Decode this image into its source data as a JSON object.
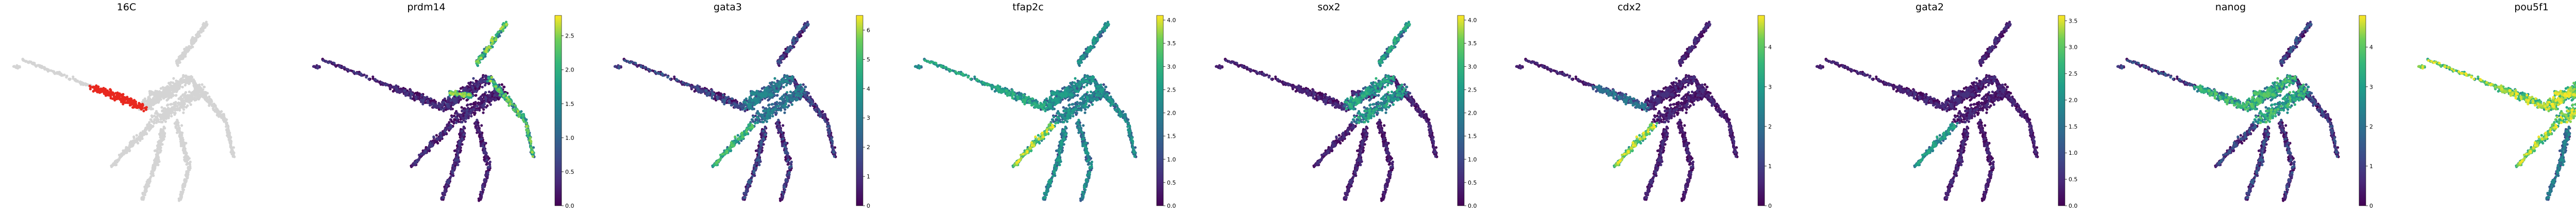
{
  "figure": {
    "kind": "embedding feature plots"
  },
  "chart_data": [
    {
      "type": "scatter",
      "title": "16C",
      "legend": "none",
      "grid": false,
      "colors": {
        "highlight": "#e8281f",
        "background": "#d4d4d4"
      }
    },
    {
      "type": "scatter",
      "title": "prdm14",
      "grid": false,
      "colormap": "viridis",
      "vmin": 0,
      "vmax": 2.8,
      "colorbar_ticks": [
        "0.0",
        "0.5",
        "1.0",
        "1.5",
        "2.0",
        "2.5"
      ],
      "colorbar_values": [
        0,
        0.5,
        1,
        1.5,
        2,
        2.5
      ]
    },
    {
      "type": "scatter",
      "title": "gata3",
      "grid": false,
      "colormap": "viridis",
      "vmin": 0,
      "vmax": 6.5,
      "colorbar_ticks": [
        "0",
        "1",
        "2",
        "3",
        "4",
        "5",
        "6"
      ],
      "colorbar_values": [
        0,
        1,
        2,
        3,
        4,
        5,
        6
      ]
    },
    {
      "type": "scatter",
      "title": "tfap2c",
      "grid": false,
      "colormap": "viridis",
      "vmin": 0,
      "vmax": 4.1,
      "colorbar_ticks": [
        "0.0",
        "0.5",
        "1.0",
        "1.5",
        "2.0",
        "2.5",
        "3.0",
        "3.5",
        "4.0"
      ],
      "colorbar_values": [
        0,
        0.5,
        1,
        1.5,
        2,
        2.5,
        3,
        3.5,
        4
      ]
    },
    {
      "type": "scatter",
      "title": "sox2",
      "grid": false,
      "colormap": "viridis",
      "vmin": 0,
      "vmax": 4.1,
      "colorbar_ticks": [
        "0.0",
        "0.5",
        "1.0",
        "1.5",
        "2.0",
        "2.5",
        "3.0",
        "3.5",
        "4.0"
      ],
      "colorbar_values": [
        0,
        0.5,
        1,
        1.5,
        2,
        2.5,
        3,
        3.5,
        4
      ]
    },
    {
      "type": "scatter",
      "title": "cdx2",
      "grid": false,
      "colormap": "viridis",
      "vmin": 0,
      "vmax": 4.8,
      "colorbar_ticks": [
        "0",
        "1",
        "2",
        "3",
        "4"
      ],
      "colorbar_values": [
        0,
        1,
        2,
        3,
        4
      ]
    },
    {
      "type": "scatter",
      "title": "gata2",
      "grid": false,
      "colormap": "viridis",
      "vmin": 0,
      "vmax": 3.6,
      "colorbar_ticks": [
        "0.0",
        "0.5",
        "1.0",
        "1.5",
        "2.0",
        "2.5",
        "3.0",
        "3.5"
      ],
      "colorbar_values": [
        0,
        0.5,
        1,
        1.5,
        2,
        2.5,
        3,
        3.5
      ]
    },
    {
      "type": "scatter",
      "title": "nanog",
      "grid": false,
      "colormap": "viridis",
      "vmin": 0,
      "vmax": 4.8,
      "colorbar_ticks": [
        "0",
        "1",
        "2",
        "3",
        "4"
      ],
      "colorbar_values": [
        0,
        1,
        2,
        3,
        4
      ]
    },
    {
      "type": "scatter",
      "title": "pou5f1",
      "grid": false,
      "colormap": "viridis",
      "vmin": 0,
      "vmax": 5.8,
      "colorbar_ticks": [
        "0",
        "1",
        "2",
        "3",
        "4",
        "5"
      ],
      "colorbar_values": [
        0,
        1,
        2,
        3,
        4,
        5
      ]
    }
  ]
}
